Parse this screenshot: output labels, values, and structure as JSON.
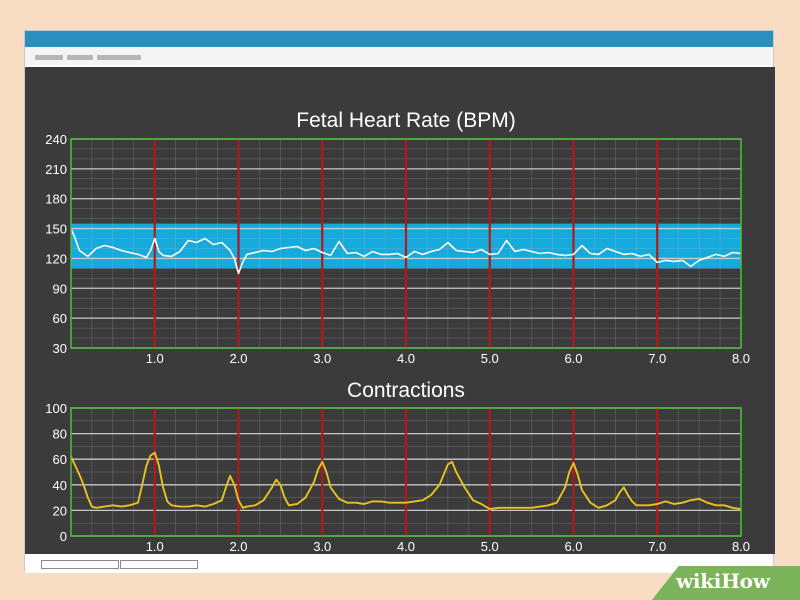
{
  "watermark": {
    "part1": "wiki",
    "part2": "How"
  },
  "chart_data": [
    {
      "type": "line",
      "title": "Fetal Heart Rate (BPM)",
      "xlim": [
        0,
        8
      ],
      "ylim": [
        30,
        240
      ],
      "x_ticks": [
        1,
        2,
        3,
        4,
        5,
        6,
        7,
        8
      ],
      "x_tick_labels": [
        "1.0",
        "2.0",
        "3.0",
        "4.0",
        "5.0",
        "6.0",
        "7.0",
        "8.0"
      ],
      "y_ticks": [
        30,
        60,
        90,
        120,
        150,
        180,
        210,
        240
      ],
      "y_tick_labels": [
        "30",
        "60",
        "90",
        "120",
        "150",
        "180",
        "210",
        "240"
      ],
      "grid": true,
      "normal_band": [
        110,
        155
      ],
      "series": [
        {
          "x": [
            0,
            0.05,
            0.1,
            0.2,
            0.3,
            0.4,
            0.5,
            0.6,
            0.7,
            0.8,
            0.9,
            0.95,
            1.0,
            1.05,
            1.1,
            1.2,
            1.3,
            1.4,
            1.5,
            1.6,
            1.7,
            1.8,
            1.9,
            1.95,
            2.0,
            2.05,
            2.1,
            2.2,
            2.3,
            2.4,
            2.5,
            2.6,
            2.7,
            2.8,
            2.9,
            3.0,
            3.1,
            3.2,
            3.3,
            3.4,
            3.5,
            3.6,
            3.7,
            3.8,
            3.9,
            4.0,
            4.1,
            4.2,
            4.3,
            4.4,
            4.5,
            4.6,
            4.7,
            4.8,
            4.9,
            5.0,
            5.1,
            5.2,
            5.3,
            5.4,
            5.5,
            5.6,
            5.7,
            5.8,
            5.9,
            6.0,
            6.1,
            6.2,
            6.3,
            6.4,
            6.5,
            6.6,
            6.7,
            6.8,
            6.9,
            7.0,
            7.1,
            7.2,
            7.3,
            7.4,
            7.5,
            7.6,
            7.7,
            7.8,
            7.9,
            8.0
          ],
          "y": [
            150,
            140,
            128,
            122,
            130,
            133,
            131,
            128,
            126,
            124,
            121,
            128,
            140,
            127,
            123,
            122,
            127,
            138,
            136,
            140,
            134,
            136,
            128,
            120,
            105,
            116,
            124,
            126,
            128,
            127,
            130,
            131,
            132,
            128,
            130,
            126,
            123,
            137,
            125,
            126,
            122,
            127,
            124,
            124,
            125,
            121,
            127,
            124,
            127,
            129,
            136,
            128,
            127,
            126,
            129,
            124,
            125,
            138,
            127,
            129,
            127,
            125,
            126,
            124,
            123,
            124,
            133,
            125,
            124,
            130,
            127,
            124,
            125,
            122,
            124,
            116,
            118,
            117,
            118,
            112,
            118,
            121,
            124,
            122,
            126,
            125
          ]
        }
      ]
    },
    {
      "type": "line",
      "title": "Contractions",
      "xlim": [
        0,
        8
      ],
      "ylim": [
        0,
        100
      ],
      "x_ticks": [
        1,
        2,
        3,
        4,
        5,
        6,
        7,
        8
      ],
      "x_tick_labels": [
        "1.0",
        "2.0",
        "3.0",
        "4.0",
        "5.0",
        "6.0",
        "7.0",
        "8.0"
      ],
      "y_ticks": [
        0,
        20,
        40,
        60,
        80,
        100
      ],
      "y_tick_labels": [
        "0",
        "20",
        "40",
        "60",
        "80",
        "100"
      ],
      "grid": true,
      "series": [
        {
          "x": [
            0,
            0.05,
            0.1,
            0.15,
            0.2,
            0.25,
            0.3,
            0.4,
            0.5,
            0.6,
            0.7,
            0.8,
            0.85,
            0.9,
            0.95,
            1.0,
            1.05,
            1.1,
            1.15,
            1.2,
            1.3,
            1.4,
            1.5,
            1.6,
            1.7,
            1.8,
            1.85,
            1.9,
            1.95,
            2.0,
            2.05,
            2.1,
            2.2,
            2.3,
            2.4,
            2.45,
            2.5,
            2.55,
            2.6,
            2.7,
            2.8,
            2.9,
            2.95,
            3.0,
            3.05,
            3.1,
            3.2,
            3.3,
            3.4,
            3.5,
            3.6,
            3.7,
            3.8,
            3.9,
            4.0,
            4.1,
            4.2,
            4.3,
            4.4,
            4.45,
            4.5,
            4.55,
            4.6,
            4.7,
            4.8,
            4.9,
            5.0,
            5.1,
            5.2,
            5.3,
            5.4,
            5.5,
            5.6,
            5.7,
            5.8,
            5.9,
            5.95,
            6.0,
            6.05,
            6.1,
            6.2,
            6.3,
            6.4,
            6.5,
            6.55,
            6.6,
            6.65,
            6.7,
            6.75,
            6.8,
            6.9,
            7.0,
            7.1,
            7.2,
            7.3,
            7.4,
            7.5,
            7.6,
            7.7,
            7.8,
            7.9,
            8.0
          ],
          "y": [
            62,
            55,
            48,
            40,
            30,
            23,
            22,
            23,
            24,
            23,
            24,
            26,
            40,
            55,
            63,
            65,
            55,
            38,
            27,
            24,
            23,
            23,
            24,
            23,
            25,
            28,
            38,
            47,
            40,
            28,
            22,
            23,
            24,
            28,
            38,
            44,
            40,
            30,
            24,
            25,
            30,
            42,
            52,
            58,
            50,
            38,
            29,
            26,
            26,
            25,
            27,
            27,
            26,
            26,
            26,
            27,
            28,
            32,
            40,
            48,
            56,
            58,
            50,
            38,
            28,
            25,
            21,
            22,
            22,
            22,
            22,
            22,
            23,
            24,
            26,
            38,
            50,
            57,
            48,
            36,
            26,
            22,
            24,
            28,
            34,
            38,
            32,
            27,
            24,
            24,
            24,
            25,
            27,
            25,
            26,
            28,
            29,
            26,
            24,
            24,
            22,
            21
          ]
        }
      ]
    }
  ],
  "colors": {
    "background": "#3b3b3b",
    "grid": "#c9c9c9",
    "frame": "#4dbf3a",
    "time_marker": "#b51818",
    "normal_band": "#16a9dc",
    "fhr_line": "#ffffff",
    "contraction_line": "#e8c21f",
    "text": "#ffffff",
    "titlebar": "#2b8fbe"
  }
}
